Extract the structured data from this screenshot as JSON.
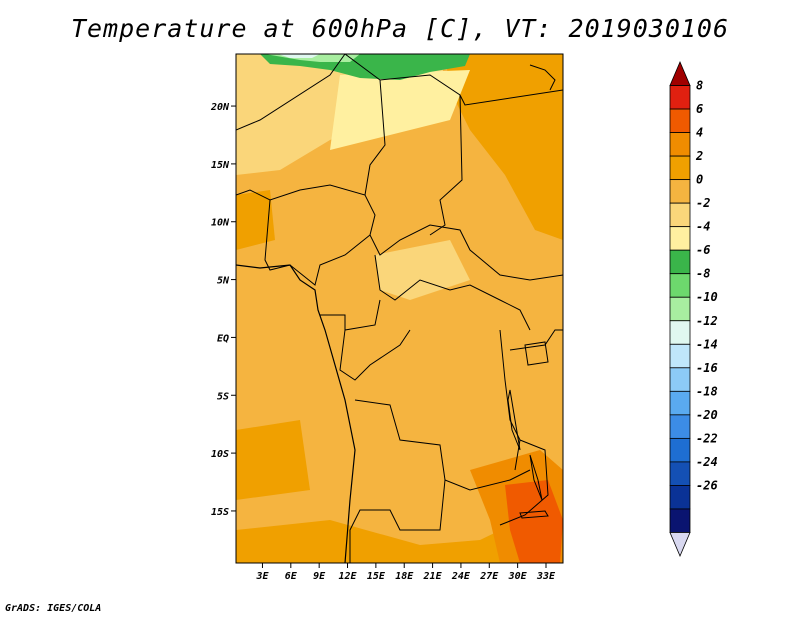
{
  "title": "Temperature at 600hPa [C], VT: 2019030106",
  "credit": "GrADS: IGES/COLA",
  "chart_data": {
    "type": "heatmap",
    "variable": "Temperature",
    "level": "600hPa",
    "units": "C",
    "valid_time": "2019030106",
    "lat_ticks": [
      "20N",
      "15N",
      "10N",
      "5N",
      "EQ",
      "5S",
      "10S",
      "15S"
    ],
    "lat_values": [
      20,
      15,
      10,
      5,
      0,
      -5,
      -10,
      -15
    ],
    "lon_ticks": [
      "3E",
      "6E",
      "9E",
      "12E",
      "15E",
      "18E",
      "21E",
      "24E",
      "27E",
      "30E",
      "33E"
    ],
    "lon_values": [
      3,
      6,
      9,
      12,
      15,
      18,
      21,
      24,
      27,
      30,
      33
    ],
    "lat_range": [
      -19.5,
      24.5
    ],
    "lon_range": [
      0.2,
      34.8
    ],
    "colorbar": {
      "labels": [
        "8",
        "6",
        "4",
        "2",
        "0",
        "-2",
        "-4",
        "-6",
        "-8",
        "-10",
        "-12",
        "-14",
        "-16",
        "-18",
        "-20",
        "-22",
        "-24",
        "-26"
      ],
      "levels": [
        8,
        6,
        4,
        2,
        0,
        -2,
        -4,
        -6,
        -8,
        -10,
        -12,
        -14,
        -16,
        -18,
        -20,
        -22,
        -24,
        -26
      ],
      "colors": [
        "#a00000",
        "#e02010",
        "#f05a00",
        "#f08c00",
        "#f0a000",
        "#f5b440",
        "#fad67a",
        "#fff0a0",
        "#3ab54a",
        "#6dd86d",
        "#a8eea0",
        "#e0f8f0",
        "#bfe6fa",
        "#8ccbf7",
        "#5aaaf0",
        "#3c8ce6",
        "#1e6ed2",
        "#1450b4",
        "#0a3296",
        "#0a1470",
        "#d8d8f0"
      ]
    },
    "fields": {
      "dominant_range_C": "0 to 2",
      "north_edge_min_C": "-10 to -6",
      "southeast_max_C": "4 to 6"
    }
  }
}
